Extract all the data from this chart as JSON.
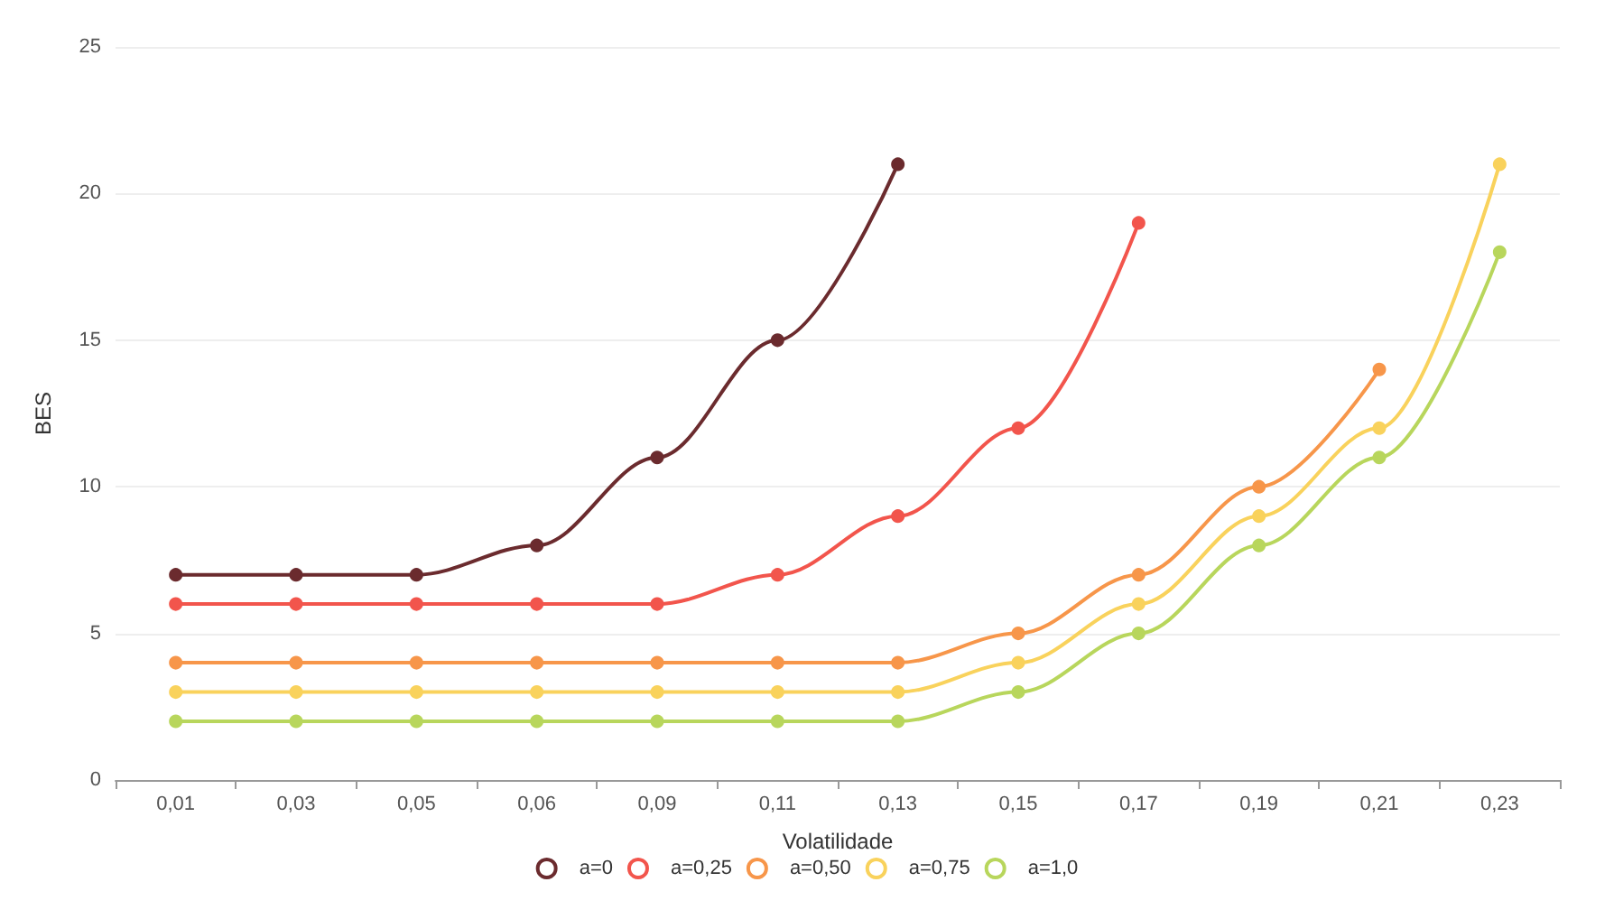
{
  "chart_data": {
    "type": "line",
    "xlabel": "Volatilidade",
    "ylabel": "BES",
    "categories": [
      "0,01",
      "0,03",
      "0,05",
      "0,06",
      "0,09",
      "0,11",
      "0,13",
      "0,15",
      "0,17",
      "0,19",
      "0,21",
      "0,23"
    ],
    "series": [
      {
        "name": "a=0",
        "color": "#6b2b2e",
        "values": [
          7,
          7,
          7,
          8,
          11,
          15,
          21,
          null,
          null,
          null,
          null,
          null
        ]
      },
      {
        "name": "a=0,25",
        "color": "#f2554c",
        "values": [
          6,
          6,
          6,
          6,
          6,
          7,
          9,
          12,
          19,
          null,
          null,
          null
        ]
      },
      {
        "name": "a=0,50",
        "color": "#f7964a",
        "values": [
          4,
          4,
          4,
          4,
          4,
          4,
          4,
          5,
          7,
          10,
          14,
          null
        ]
      },
      {
        "name": "a=0,75",
        "color": "#f9d25c",
        "values": [
          3,
          3,
          3,
          3,
          3,
          3,
          3,
          4,
          6,
          9,
          12,
          21
        ]
      },
      {
        "name": "a=1,0",
        "color": "#b8d65c",
        "values": [
          2,
          2,
          2,
          2,
          2,
          2,
          2,
          3,
          5,
          8,
          11,
          18
        ]
      }
    ],
    "ylim": [
      0,
      25
    ],
    "yticks": [
      0,
      5,
      10,
      15,
      20,
      25
    ],
    "grid": "y",
    "legend": "bottom",
    "marker": "circle",
    "line_style": "solid"
  }
}
